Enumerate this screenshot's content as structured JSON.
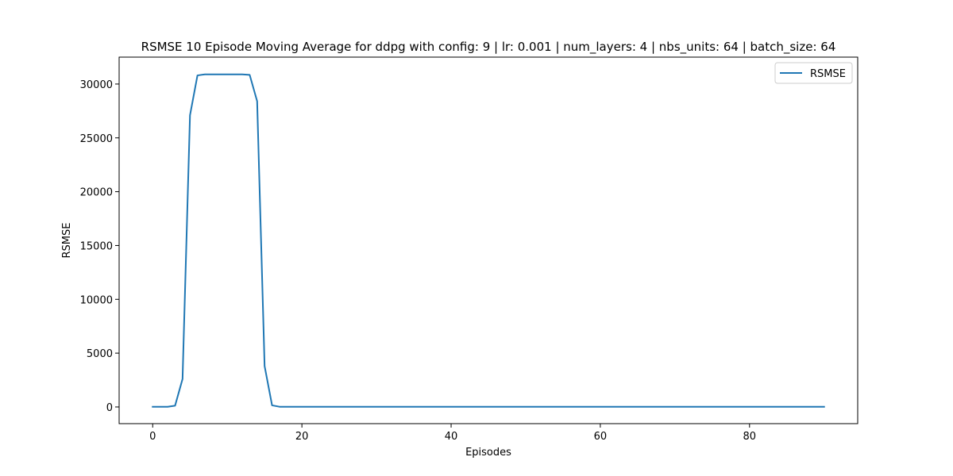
{
  "chart_data": {
    "type": "line",
    "title": "RSMSE 10 Episode Moving Average for ddpg with config: 9 | lr: 0.001 | num_layers: 4 | nbs_units: 64 | batch_size: 64",
    "xlabel": "Episodes",
    "ylabel": "RSMSE",
    "xlim": [
      -4.5,
      94.5
    ],
    "ylim": [
      -1550,
      32500
    ],
    "xticks": [
      0,
      20,
      40,
      60,
      80
    ],
    "yticks": [
      0,
      5000,
      10000,
      15000,
      20000,
      25000,
      30000
    ],
    "grid": false,
    "legend_position": "top-right",
    "series": [
      {
        "name": "RSMSE",
        "color": "#1f77b4",
        "x": [
          0,
          1,
          2,
          3,
          4,
          5,
          6,
          7,
          8,
          9,
          10,
          11,
          12,
          13,
          14,
          15,
          16,
          17,
          18,
          19,
          20,
          25,
          30,
          35,
          40,
          45,
          50,
          55,
          60,
          65,
          70,
          75,
          80,
          85,
          90
        ],
        "y": [
          20,
          20,
          20,
          120,
          2600,
          27100,
          30800,
          30900,
          30900,
          30900,
          30900,
          30900,
          30900,
          30850,
          28400,
          3800,
          150,
          20,
          20,
          20,
          20,
          20,
          20,
          20,
          20,
          20,
          20,
          20,
          20,
          20,
          20,
          20,
          20,
          20,
          20
        ]
      }
    ]
  }
}
